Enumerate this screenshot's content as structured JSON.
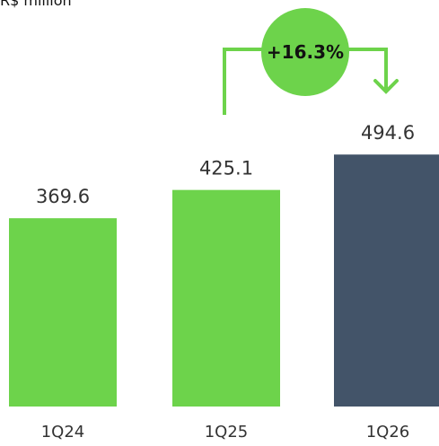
{
  "header": {
    "unit_label": "R$ million"
  },
  "chart_data": {
    "type": "bar",
    "title": "",
    "xlabel": "",
    "ylabel": "",
    "categories": [
      "1Q24",
      "1Q25",
      "1Q26"
    ],
    "values": [
      369.6,
      425.1,
      494.6
    ],
    "value_labels": [
      "369.6",
      "425.1",
      "494.6"
    ],
    "colors": [
      "#6dd34b",
      "#6dd34b",
      "#435469"
    ],
    "ylim": [
      0,
      494.6
    ],
    "grid": false,
    "annotation": {
      "text": "+16.3%",
      "from": "1Q25",
      "to": "1Q26",
      "circle_color": "#6dd34b"
    }
  }
}
